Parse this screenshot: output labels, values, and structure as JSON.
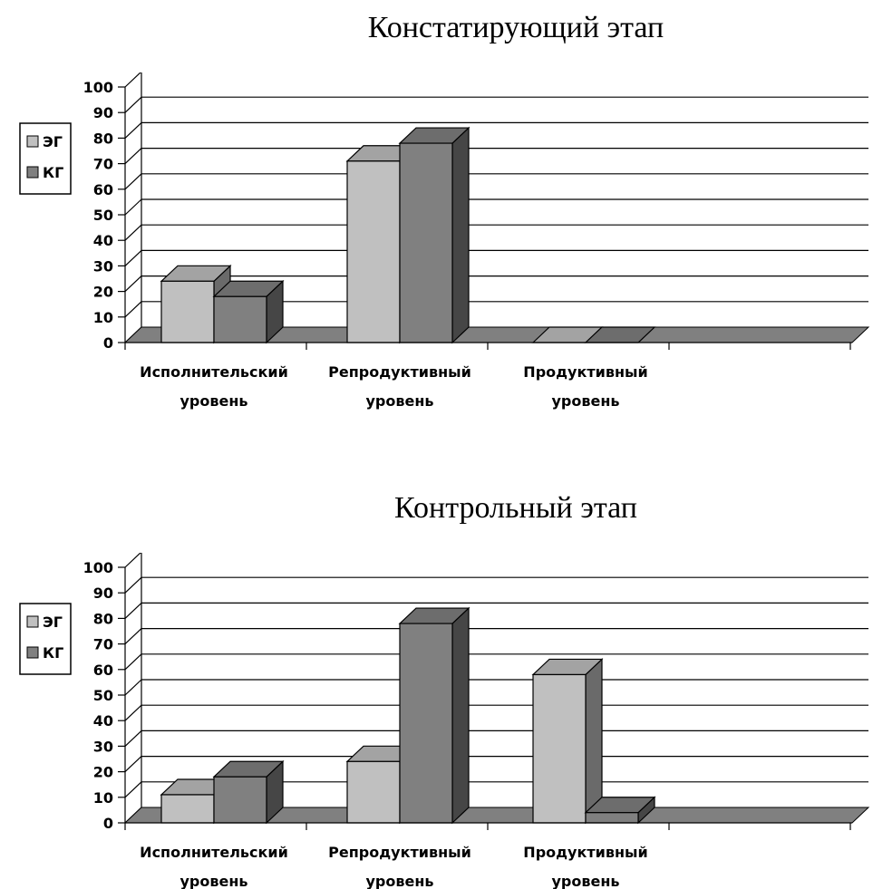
{
  "chart_data": [
    {
      "type": "bar",
      "title": "Констатирующий этап",
      "categories": [
        "Исполнительский уровень",
        "Репродуктивный уровень",
        "Продуктивный уровень"
      ],
      "category_lines": [
        [
          "Исполнительский",
          "уровень"
        ],
        [
          "Репродуктивный",
          "уровень"
        ],
        [
          "Продуктивный",
          "уровень"
        ]
      ],
      "series": [
        {
          "name": "ЭГ",
          "values": [
            24,
            71,
            0
          ],
          "color": "#c0c0c0"
        },
        {
          "name": "КГ",
          "values": [
            18,
            78,
            0
          ],
          "color": "#808080"
        }
      ],
      "ylim": [
        0,
        100
      ],
      "yticks": [
        0,
        10,
        20,
        30,
        40,
        50,
        60,
        70,
        80,
        90,
        100
      ],
      "grid": true,
      "legend": "left",
      "style": "3d-bar"
    },
    {
      "type": "bar",
      "title": "Контрольный этап",
      "categories": [
        "Исполнительский уровень",
        "Репродуктивный уровень",
        "Продуктивный уровень"
      ],
      "category_lines": [
        [
          "Исполнительский",
          "уровень"
        ],
        [
          "Репродуктивный",
          "уровень"
        ],
        [
          "Продуктивный",
          "уровень"
        ]
      ],
      "series": [
        {
          "name": "ЭГ",
          "values": [
            11,
            24,
            58
          ],
          "color": "#c0c0c0"
        },
        {
          "name": "КГ",
          "values": [
            18,
            78,
            4
          ],
          "color": "#808080"
        }
      ],
      "ylim": [
        0,
        100
      ],
      "yticks": [
        0,
        10,
        20,
        30,
        40,
        50,
        60,
        70,
        80,
        90,
        100
      ],
      "grid": true,
      "legend": "left",
      "style": "3d-bar"
    }
  ]
}
